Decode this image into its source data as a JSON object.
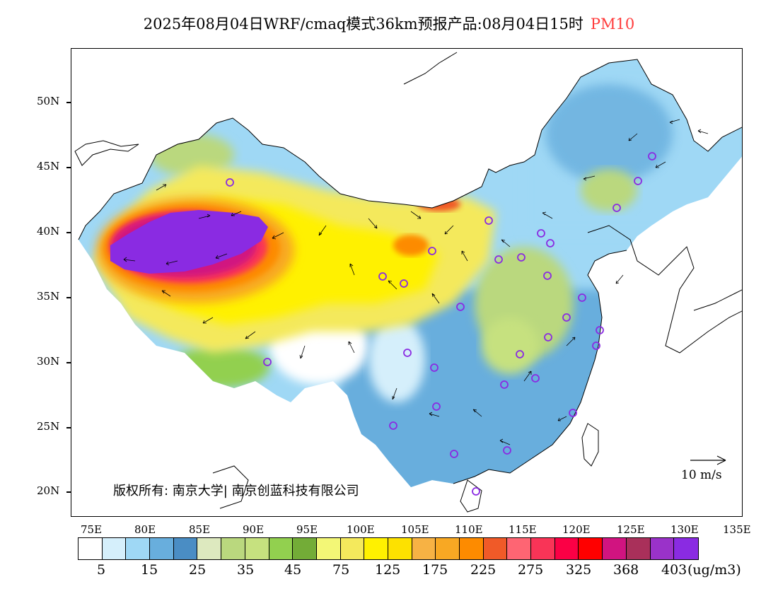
{
  "title": {
    "main": "2025年08月04日WRF/cmaq模式36km预报产品:08月04日15时",
    "pollutant": "PM10",
    "pollutant_color": "#ff3b3b"
  },
  "map": {
    "lat_labels": [
      "50N",
      "45N",
      "40N",
      "35N",
      "30N",
      "25N",
      "20N"
    ],
    "lon_labels": [
      "75E",
      "80E",
      "85E",
      "90E",
      "95E",
      "100E",
      "105E",
      "110E",
      "115E",
      "120E",
      "125E",
      "130E",
      "135E"
    ],
    "copyright": "版权所有: 南京大学| 南京创蓝科技有限公司",
    "wind_reference": "10 m/s"
  },
  "colorbar": {
    "colors": [
      "#ffffff",
      "#d5effb",
      "#9fd8f5",
      "#68aedd",
      "#4a8dc4",
      "#dde9bf",
      "#bad87e",
      "#c6e17f",
      "#92d04f",
      "#73ac37",
      "#f3f776",
      "#f4e95c",
      "#fff100",
      "#fde100",
      "#f7b244",
      "#f8a823",
      "#fd8b00",
      "#f05a28",
      "#fe6573",
      "#f93457",
      "#fb0045",
      "#ff0000",
      "#d11480",
      "#a9305a",
      "#9a32c9",
      "#8a2be2"
    ],
    "labels": [
      "5",
      "15",
      "25",
      "35",
      "45",
      "75",
      "125",
      "175",
      "225",
      "275",
      "325",
      "368",
      "403"
    ],
    "unit": "(ug/m3)"
  }
}
